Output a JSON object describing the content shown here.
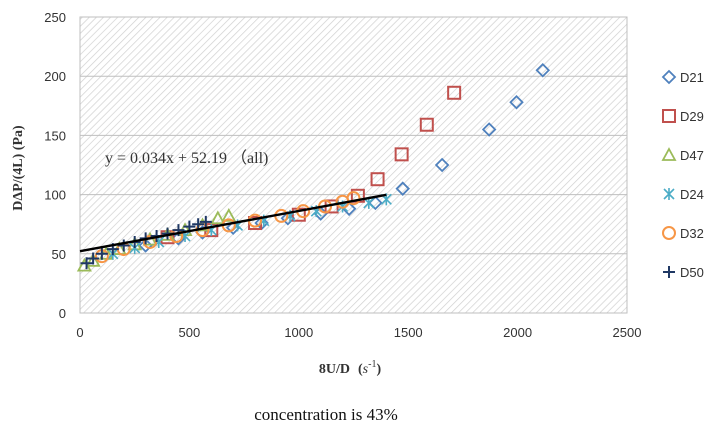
{
  "chart_data": {
    "type": "scatter",
    "xlabel": "8U/D",
    "xlabel_unit_base": "s",
    "xlabel_unit_exp": "-1",
    "ylabel": "DΔP/(4L) (Pa)",
    "xlim": [
      0,
      2500
    ],
    "ylim": [
      0,
      250
    ],
    "x_ticks": [
      0,
      500,
      1000,
      1500,
      2000,
      2500
    ],
    "y_ticks": [
      0,
      50,
      100,
      150,
      200,
      250
    ],
    "grid": "hatched plot area",
    "legend_position": "right",
    "annotation": "y = 0.034x + 52.19 （all)",
    "trendline": {
      "slope": 0.034,
      "intercept": 52.19,
      "x_range": [
        0,
        1400
      ]
    },
    "caption": "concentration is 43%",
    "series": [
      {
        "name": "D21",
        "marker": "diamond",
        "color": "#4f81bd",
        "points": [
          [
            300,
            57
          ],
          [
            450,
            63
          ],
          [
            560,
            68
          ],
          [
            700,
            72
          ],
          [
            830,
            76
          ],
          [
            950,
            80
          ],
          [
            1100,
            84
          ],
          [
            1230,
            88
          ],
          [
            1350,
            93
          ],
          [
            1475,
            105
          ],
          [
            1655,
            125
          ],
          [
            1870,
            155
          ],
          [
            1995,
            178
          ],
          [
            2115,
            205
          ]
        ]
      },
      {
        "name": "D29",
        "marker": "square",
        "color": "#c0504d",
        "points": [
          [
            400,
            64
          ],
          [
            600,
            70
          ],
          [
            800,
            76
          ],
          [
            1000,
            83
          ],
          [
            1150,
            90
          ],
          [
            1270,
            99
          ],
          [
            1360,
            113
          ],
          [
            1470,
            134
          ],
          [
            1585,
            159
          ],
          [
            1710,
            186
          ]
        ]
      },
      {
        "name": "D47",
        "marker": "triangle",
        "color": "#9bbb59",
        "points": [
          [
            20,
            40
          ],
          [
            60,
            44
          ],
          [
            120,
            50
          ],
          [
            180,
            54
          ],
          [
            250,
            58
          ],
          [
            320,
            62
          ],
          [
            400,
            66
          ],
          [
            480,
            70
          ],
          [
            560,
            74
          ],
          [
            630,
            80
          ],
          [
            680,
            82
          ]
        ]
      },
      {
        "name": "D24",
        "marker": "asterisk",
        "color": "#4bacc6",
        "points": [
          [
            150,
            50
          ],
          [
            250,
            55
          ],
          [
            360,
            60
          ],
          [
            480,
            65
          ],
          [
            600,
            70
          ],
          [
            720,
            74
          ],
          [
            840,
            78
          ],
          [
            960,
            82
          ],
          [
            1080,
            86
          ],
          [
            1200,
            90
          ],
          [
            1320,
            93
          ],
          [
            1400,
            96
          ]
        ]
      },
      {
        "name": "D32",
        "marker": "circle",
        "color": "#f79646",
        "points": [
          [
            100,
            48
          ],
          [
            200,
            54
          ],
          [
            320,
            60
          ],
          [
            440,
            65
          ],
          [
            560,
            70
          ],
          [
            680,
            74
          ],
          [
            800,
            78
          ],
          [
            920,
            82
          ],
          [
            1020,
            86
          ],
          [
            1120,
            90
          ],
          [
            1200,
            94
          ],
          [
            1250,
            97
          ]
        ]
      },
      {
        "name": "D50",
        "marker": "plus",
        "color": "#1f3864",
        "points": [
          [
            30,
            42
          ],
          [
            60,
            46
          ],
          [
            100,
            50
          ],
          [
            150,
            54
          ],
          [
            200,
            57
          ],
          [
            250,
            60
          ],
          [
            300,
            63
          ],
          [
            350,
            65
          ],
          [
            400,
            67
          ],
          [
            450,
            70
          ],
          [
            500,
            73
          ],
          [
            540,
            75
          ],
          [
            575,
            77
          ]
        ]
      }
    ]
  }
}
